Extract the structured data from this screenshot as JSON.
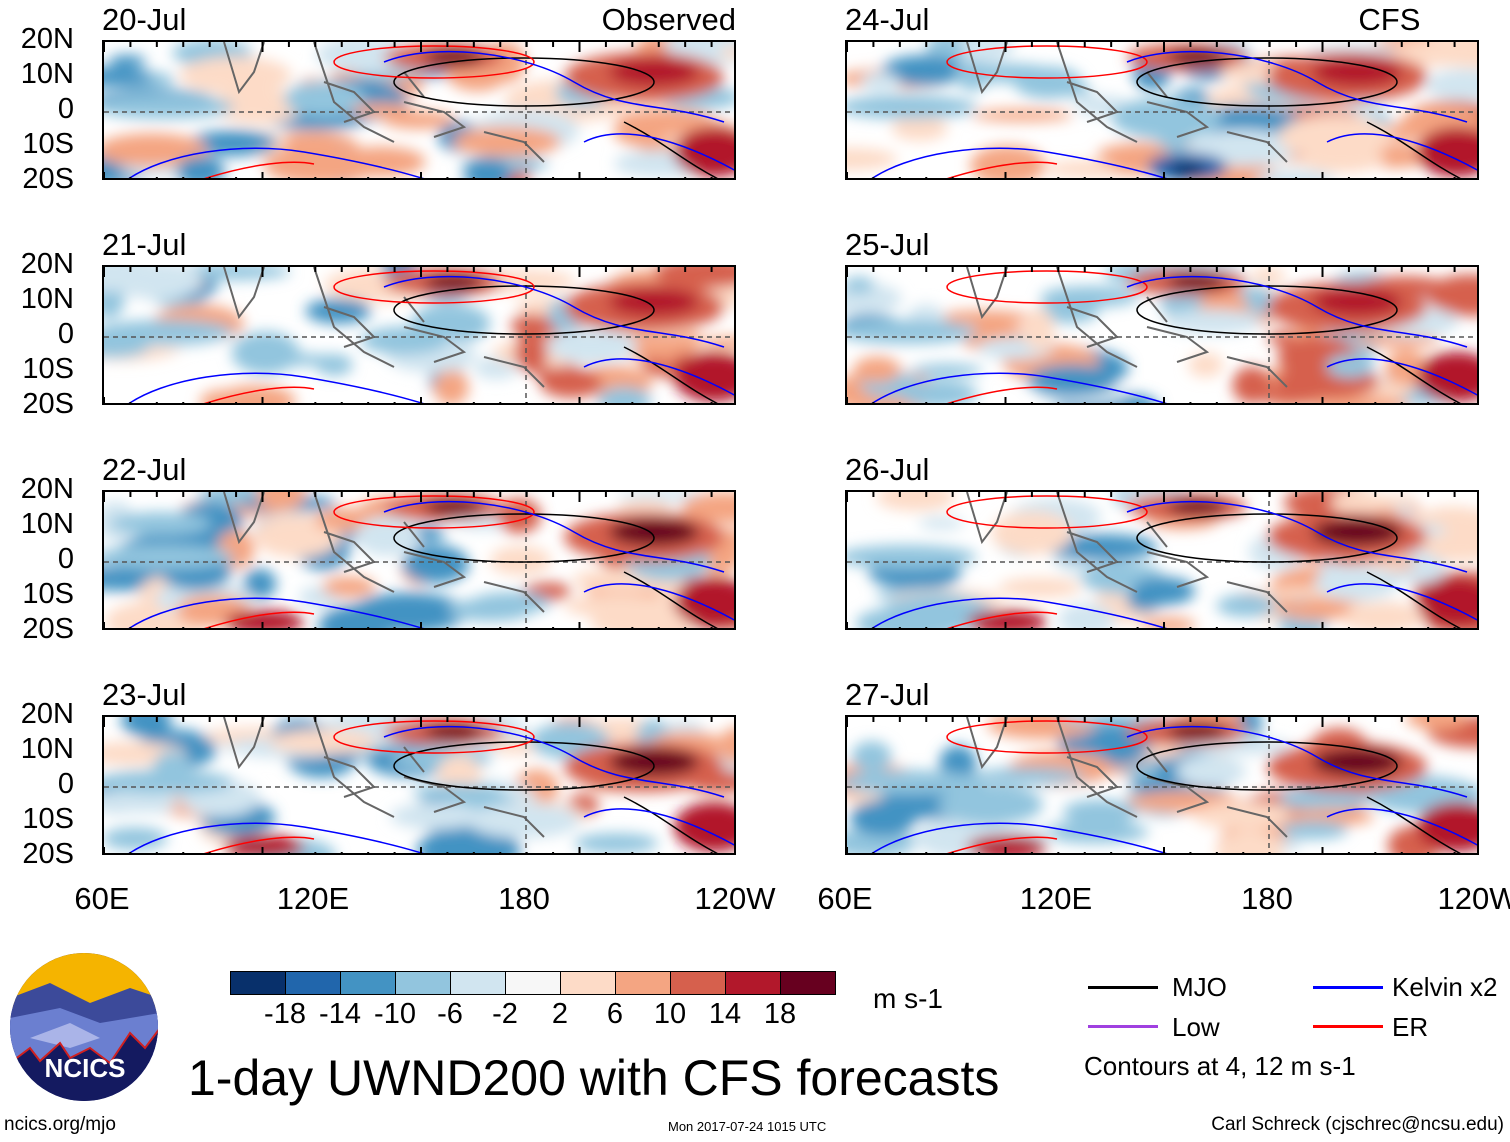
{
  "figure": {
    "title": "1-day UWND200 with CFS forecasts",
    "left_column_label": "Observed",
    "right_column_label": "CFS Forecast",
    "panels_left": [
      {
        "date": "20-Jul"
      },
      {
        "date": "21-Jul"
      },
      {
        "date": "22-Jul"
      },
      {
        "date": "23-Jul"
      }
    ],
    "panels_right": [
      {
        "date": "24-Jul"
      },
      {
        "date": "25-Jul"
      },
      {
        "date": "26-Jul"
      },
      {
        "date": "27-Jul"
      }
    ],
    "lat_labels": [
      "20N",
      "10N",
      "0",
      "10S",
      "20S"
    ],
    "lon_labels": [
      "60E",
      "120E",
      "180",
      "120W"
    ],
    "colorbar": {
      "unit": "m s-1",
      "labels": [
        "-18",
        "-14",
        "-10",
        "-6",
        "-2",
        "2",
        "6",
        "10",
        "14",
        "18"
      ],
      "colors": [
        "#08306b",
        "#2166ac",
        "#4393c3",
        "#92c5de",
        "#d1e5f0",
        "#f7f7f7",
        "#fddbc7",
        "#f4a582",
        "#d6604d",
        "#b2182b",
        "#67001f"
      ]
    },
    "legend": {
      "items": [
        {
          "label": "MJO",
          "color": "#000000"
        },
        {
          "label": "Kelvin x2",
          "color": "#0000ff"
        },
        {
          "label": "Low",
          "color": "#a040e0"
        },
        {
          "label": "ER",
          "color": "#ff0000"
        }
      ],
      "contours_note": "Contours at 4, 12 m s-1"
    },
    "logo_text": "NCICS",
    "footer": {
      "url": "ncics.org/mjo",
      "timestamp": "Mon 2017-07-24 1015 UTC",
      "author": "Carl Schreck (cjschrec@ncsu.edu)"
    }
  }
}
